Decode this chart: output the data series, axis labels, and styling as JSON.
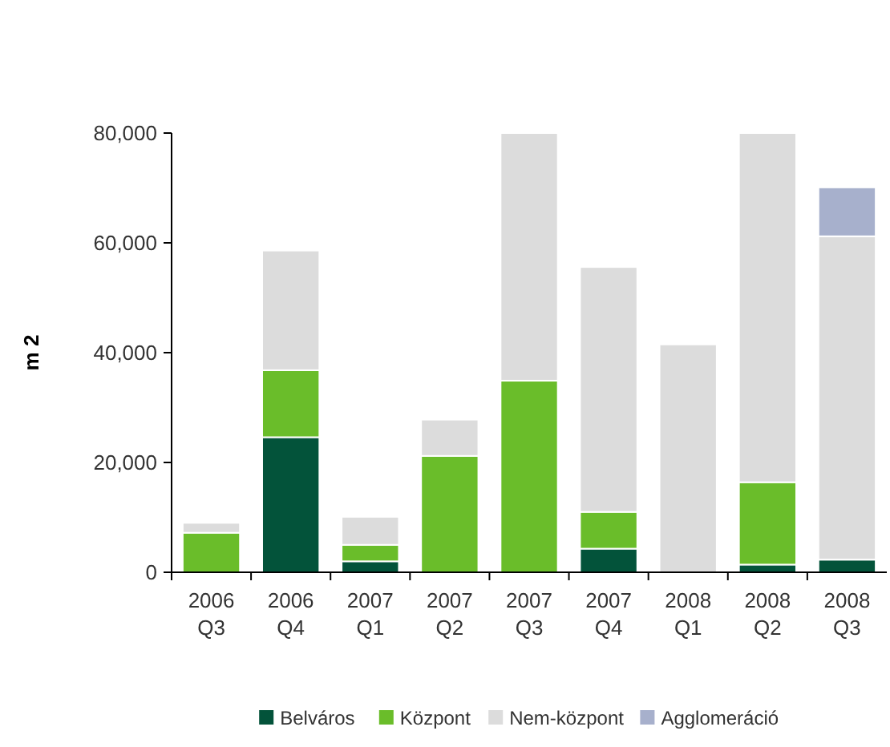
{
  "chart_data": {
    "type": "bar",
    "stacked": true,
    "ylabel": "m 2",
    "categories": [
      "2006\nQ3",
      "2006\nQ4",
      "2007\nQ1",
      "2007\nQ2",
      "2007\nQ3",
      "2007\nQ4",
      "2008\nQ1",
      "2008\nQ2",
      "2008\nQ3"
    ],
    "series": [
      {
        "name": "Belváros",
        "color": "#03533a",
        "values": [
          0,
          24600,
          2000,
          0,
          0,
          4300,
          0,
          1400,
          2300
        ]
      },
      {
        "name": "Központ",
        "color": "#6abd2a",
        "values": [
          7200,
          12200,
          3000,
          21200,
          34900,
          6700,
          0,
          15000,
          0
        ]
      },
      {
        "name": "Nem-központ",
        "color": "#dcdcdc",
        "values": [
          1800,
          21800,
          5100,
          6600,
          45100,
          44600,
          41500,
          63600,
          58900
        ]
      },
      {
        "name": "Agglomeráció",
        "color": "#a7b0cc",
        "values": [
          0,
          0,
          0,
          0,
          0,
          0,
          0,
          0,
          8900
        ]
      }
    ],
    "ylim": [
      0,
      80000
    ],
    "yticks": [
      {
        "value": 0,
        "label": "0"
      },
      {
        "value": 20000,
        "label": "20,000"
      },
      {
        "value": 40000,
        "label": "40,000"
      },
      {
        "value": 60000,
        "label": "60,000"
      },
      {
        "value": 80000,
        "label": "80,000"
      }
    ],
    "grid": false,
    "legend": "bottom"
  }
}
